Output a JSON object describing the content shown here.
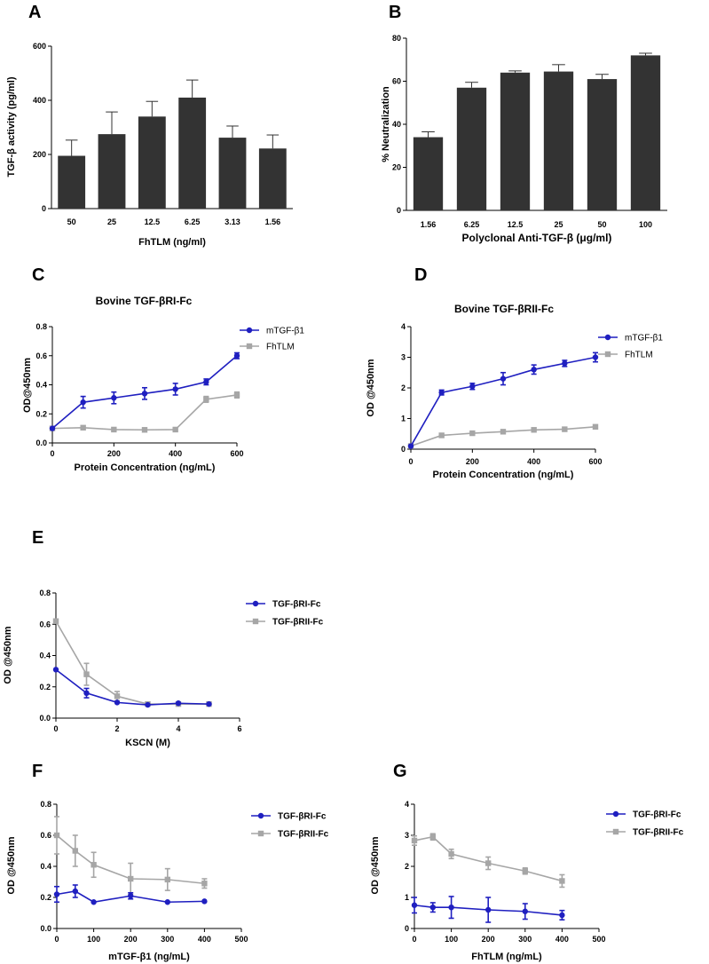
{
  "colors": {
    "blue": "#1f1fc0",
    "gray": "#a6a6a6",
    "bar": "#333333",
    "axis": "#000000"
  },
  "chart_data": [
    {
      "id": "A",
      "type": "bar",
      "letter": "A",
      "title": "",
      "xlabel": "FhTLM (ng/ml)",
      "ylabel": "TGF-β activity (pg/ml)",
      "categories": [
        "50",
        "25",
        "12.5",
        "6.25",
        "3.13",
        "1.56"
      ],
      "values": [
        195,
        275,
        340,
        410,
        262,
        222
      ],
      "errors": [
        58,
        82,
        56,
        65,
        43,
        50
      ],
      "ylim": [
        0,
        600
      ],
      "yticks": [
        0,
        200,
        400,
        600
      ]
    },
    {
      "id": "B",
      "type": "bar",
      "letter": "B",
      "title": "",
      "xlabel": "Polyclonal Anti-TGF-β (μg/ml)",
      "ylabel": "% Neutralization",
      "categories": [
        "1.56",
        "6.25",
        "12.5",
        "25",
        "50",
        "100"
      ],
      "values": [
        34,
        57,
        64,
        64.5,
        61,
        72
      ],
      "errors": [
        2.5,
        2.5,
        0.8,
        3.2,
        2.2,
        1.0
      ],
      "ylim": [
        0,
        80
      ],
      "yticks": [
        0,
        20,
        40,
        60,
        80
      ]
    },
    {
      "id": "C",
      "type": "line",
      "letter": "C",
      "title": "Bovine TGF-βRI-Fc",
      "xlabel": "Protein Concentration (ng/mL)",
      "ylabel": "OD@450nm",
      "xlim": [
        0,
        600
      ],
      "xticks": [
        0,
        200,
        400,
        600
      ],
      "ylim": [
        0,
        0.8
      ],
      "yticks": [
        "0.0",
        "0.2",
        "0.4",
        "0.6",
        "0.8"
      ],
      "series": [
        {
          "name": "mTGF-β1",
          "color": "blue",
          "marker": "circle",
          "x": [
            0,
            100,
            200,
            300,
            400,
            500,
            600
          ],
          "y": [
            0.1,
            0.28,
            0.31,
            0.34,
            0.37,
            0.42,
            0.6
          ],
          "err": [
            0,
            0.04,
            0.04,
            0.04,
            0.04,
            0.02,
            0.02
          ]
        },
        {
          "name": "FhTLM",
          "color": "gray",
          "marker": "square",
          "x": [
            0,
            100,
            200,
            300,
            400,
            500,
            600
          ],
          "y": [
            0.1,
            0.105,
            0.092,
            0.09,
            0.092,
            0.3,
            0.33
          ],
          "err": [
            0,
            0,
            0,
            0,
            0,
            0.02,
            0.02
          ]
        }
      ]
    },
    {
      "id": "D",
      "type": "line",
      "letter": "D",
      "title": "Bovine TGF-βRII-Fc",
      "xlabel": "Protein Concentration (ng/mL)",
      "ylabel": "OD @450nm",
      "xlim": [
        0,
        600
      ],
      "xticks": [
        0,
        200,
        400,
        600
      ],
      "ylim": [
        0,
        4
      ],
      "yticks": [
        "0",
        "1",
        "2",
        "3",
        "4"
      ],
      "series": [
        {
          "name": "mTGF-β1",
          "color": "blue",
          "marker": "circle",
          "x": [
            0,
            100,
            200,
            300,
            400,
            500,
            600
          ],
          "y": [
            0.1,
            1.85,
            2.05,
            2.3,
            2.6,
            2.8,
            3.0
          ],
          "err": [
            0,
            0.08,
            0.1,
            0.2,
            0.15,
            0.1,
            0.15
          ]
        },
        {
          "name": "FhTLM",
          "color": "gray",
          "marker": "square",
          "x": [
            0,
            100,
            200,
            300,
            400,
            500,
            600
          ],
          "y": [
            0.1,
            0.45,
            0.52,
            0.57,
            0.63,
            0.65,
            0.73
          ],
          "err": [
            0,
            0,
            0,
            0,
            0,
            0,
            0
          ]
        }
      ]
    },
    {
      "id": "E",
      "type": "line",
      "letter": "E",
      "title": "",
      "xlabel": "KSCN (M)",
      "ylabel": "OD @450nm",
      "xlim": [
        0,
        6
      ],
      "xticks": [
        0,
        2,
        4,
        6
      ],
      "ylim": [
        0,
        0.8
      ],
      "yticks": [
        "0.0",
        "0.2",
        "0.4",
        "0.6",
        "0.8"
      ],
      "series": [
        {
          "name": "TGF-βRI-Fc",
          "color": "blue",
          "marker": "circle",
          "x": [
            0,
            1,
            2,
            3,
            4,
            5
          ],
          "y": [
            0.31,
            0.16,
            0.1,
            0.085,
            0.095,
            0.09
          ],
          "err": [
            0,
            0.03,
            0,
            0,
            0,
            0
          ]
        },
        {
          "name": "TGF-βRII-Fc",
          "color": "gray",
          "marker": "square",
          "x": [
            0,
            1,
            2,
            3,
            4,
            5
          ],
          "y": [
            0.62,
            0.28,
            0.14,
            0.09,
            0.09,
            0.09
          ],
          "err": [
            0,
            0.07,
            0.03,
            0,
            0,
            0
          ]
        }
      ]
    },
    {
      "id": "F",
      "type": "line",
      "letter": "F",
      "title": "",
      "xlabel": "mTGF-β1 (ng/mL)",
      "ylabel": "OD @450nm",
      "xlim": [
        0,
        500
      ],
      "xticks": [
        0,
        100,
        200,
        300,
        400,
        500
      ],
      "ylim": [
        0,
        0.8
      ],
      "yticks": [
        "0.0",
        "0.2",
        "0.4",
        "0.6",
        "0.8"
      ],
      "series": [
        {
          "name": "TGF-βRI-Fc",
          "color": "blue",
          "marker": "circle",
          "x": [
            0,
            50,
            100,
            200,
            300,
            400
          ],
          "y": [
            0.22,
            0.24,
            0.17,
            0.21,
            0.17,
            0.175
          ],
          "err": [
            0.05,
            0.04,
            0,
            0.02,
            0,
            0
          ]
        },
        {
          "name": "TGF-βRII-Fc",
          "color": "gray",
          "marker": "square",
          "x": [
            0,
            50,
            100,
            200,
            300,
            400
          ],
          "y": [
            0.6,
            0.5,
            0.41,
            0.32,
            0.315,
            0.29
          ],
          "err": [
            0.12,
            0.1,
            0.08,
            0.1,
            0.07,
            0.03
          ]
        }
      ]
    },
    {
      "id": "G",
      "type": "line",
      "letter": "G",
      "title": "",
      "xlabel": "FhTLM (ng/mL)",
      "ylabel": "OD @450nm",
      "xlim": [
        0,
        500
      ],
      "xticks": [
        0,
        100,
        200,
        300,
        400,
        500
      ],
      "ylim": [
        0,
        4
      ],
      "yticks": [
        "0",
        "1",
        "2",
        "3",
        "4"
      ],
      "series": [
        {
          "name": "TGF-βRI-Fc",
          "color": "blue",
          "marker": "circle",
          "x": [
            0,
            50,
            100,
            200,
            300,
            400
          ],
          "y": [
            0.75,
            0.68,
            0.68,
            0.6,
            0.55,
            0.43
          ],
          "err": [
            0.25,
            0.15,
            0.35,
            0.4,
            0.25,
            0.15
          ]
        },
        {
          "name": "TGF-βRII-Fc",
          "color": "gray",
          "marker": "square",
          "x": [
            0,
            50,
            100,
            200,
            300,
            400
          ],
          "y": [
            2.83,
            2.95,
            2.4,
            2.1,
            1.85,
            1.53
          ],
          "err": [
            0.15,
            0.1,
            0.15,
            0.2,
            0.1,
            0.2
          ]
        }
      ]
    }
  ]
}
